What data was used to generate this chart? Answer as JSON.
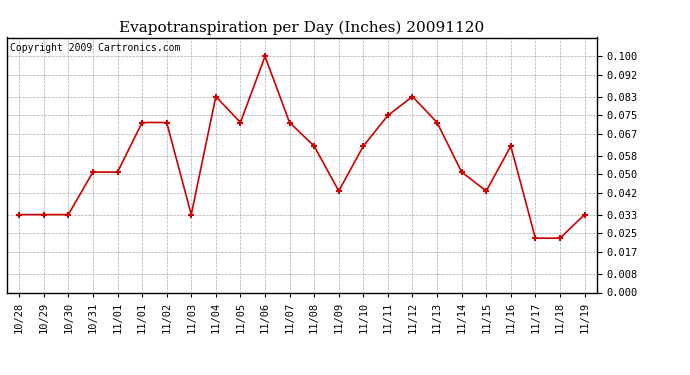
{
  "title": "Evapotranspiration per Day (Inches) 20091120",
  "copyright": "Copyright 2009 Cartronics.com",
  "x_labels": [
    "10/28",
    "10/29",
    "10/30",
    "10/31",
    "11/01",
    "11/01",
    "11/02",
    "11/03",
    "11/04",
    "11/05",
    "11/06",
    "11/07",
    "11/08",
    "11/09",
    "11/10",
    "11/11",
    "11/12",
    "11/13",
    "11/14",
    "11/15",
    "11/16",
    "11/17",
    "11/18",
    "11/19"
  ],
  "y_values": [
    0.033,
    0.033,
    0.033,
    0.051,
    0.051,
    0.072,
    0.072,
    0.033,
    0.083,
    0.072,
    0.1,
    0.072,
    0.062,
    0.043,
    0.062,
    0.075,
    0.083,
    0.072,
    0.051,
    0.043,
    0.062,
    0.023,
    0.023,
    0.033
  ],
  "line_color": "#cc0000",
  "marker": "+",
  "marker_size": 5,
  "marker_linewidth": 1.5,
  "ylim": [
    0.0,
    0.108
  ],
  "yticks": [
    0.0,
    0.008,
    0.017,
    0.025,
    0.033,
    0.042,
    0.05,
    0.058,
    0.067,
    0.075,
    0.083,
    0.092,
    0.1
  ],
  "background_color": "#ffffff",
  "grid_color": "#aaaaaa",
  "title_fontsize": 11,
  "copyright_fontsize": 7,
  "tick_fontsize": 7.5
}
